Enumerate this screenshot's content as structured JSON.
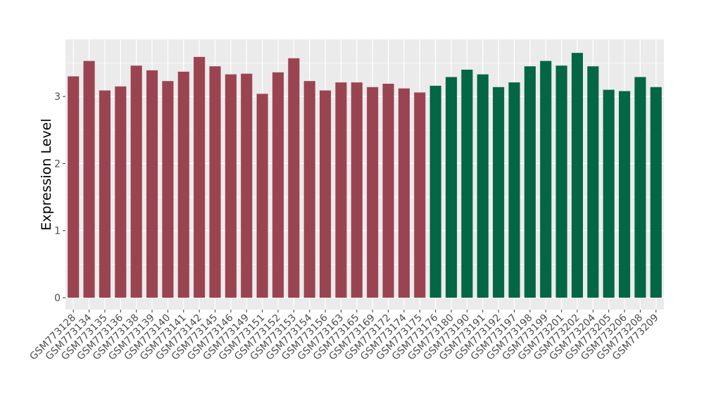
{
  "chart_data": {
    "type": "bar",
    "title": "",
    "xlabel": "",
    "ylabel": "Expression Level",
    "ylim": [
      0,
      3.9
    ],
    "yticks": [
      0,
      1,
      2,
      3
    ],
    "grid": true,
    "legend": "none",
    "colors": {
      "group1": "#9b4451",
      "group2": "#036644",
      "panel": "#ebebeb",
      "gridline": "#ffffff"
    },
    "categories": [
      "GSM773128",
      "GSM773134",
      "GSM773135",
      "GSM773136",
      "GSM773138",
      "GSM773139",
      "GSM773140",
      "GSM773141",
      "GSM773142",
      "GSM773145",
      "GSM773146",
      "GSM773149",
      "GSM773151",
      "GSM773152",
      "GSM773153",
      "GSM773154",
      "GSM773156",
      "GSM773163",
      "GSM773165",
      "GSM773169",
      "GSM773172",
      "GSM773174",
      "GSM773175",
      "GSM773176",
      "GSM773180",
      "GSM773190",
      "GSM773191",
      "GSM773192",
      "GSM773197",
      "GSM773198",
      "GSM773199",
      "GSM773201",
      "GSM773202",
      "GSM773204",
      "GSM773205",
      "GSM773206",
      "GSM773208",
      "GSM773209"
    ],
    "values": [
      3.3,
      3.53,
      3.09,
      3.15,
      3.46,
      3.39,
      3.23,
      3.37,
      3.59,
      3.45,
      3.33,
      3.34,
      3.04,
      3.36,
      3.57,
      3.23,
      3.09,
      3.21,
      3.21,
      3.14,
      3.19,
      3.12,
      3.06,
      3.16,
      3.29,
      3.4,
      3.33,
      3.14,
      3.21,
      3.45,
      3.53,
      3.46,
      3.65,
      3.45,
      3.1,
      3.08,
      3.29,
      3.14
    ],
    "groups": [
      "group1",
      "group1",
      "group1",
      "group1",
      "group1",
      "group1",
      "group1",
      "group1",
      "group1",
      "group1",
      "group1",
      "group1",
      "group1",
      "group1",
      "group1",
      "group1",
      "group1",
      "group1",
      "group1",
      "group1",
      "group1",
      "group1",
      "group1",
      "group2",
      "group2",
      "group2",
      "group2",
      "group2",
      "group2",
      "group2",
      "group2",
      "group2",
      "group2",
      "group2",
      "group2",
      "group2",
      "group2",
      "group2"
    ]
  }
}
